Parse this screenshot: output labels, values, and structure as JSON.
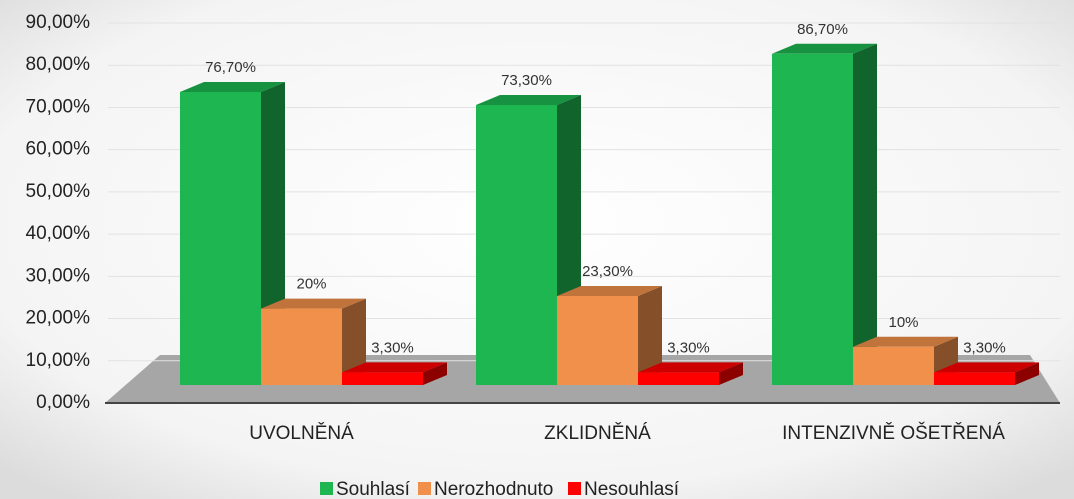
{
  "chart_data": {
    "type": "bar3d",
    "categories": [
      "UVOLNĚNÁ",
      "ZKLIDNĚNÁ",
      "INTENZIVNĚ OŠETŘENÁ"
    ],
    "series": [
      {
        "name": "Souhlasí",
        "color": "#1db650",
        "values": [
          76.7,
          73.3,
          86.7
        ],
        "value_labels": [
          "76,70%",
          "73,30%",
          "86,70%"
        ]
      },
      {
        "name": "Nerozhodnuto",
        "color": "#f0904a",
        "values": [
          20,
          23.3,
          10
        ],
        "value_labels": [
          "20%",
          "23,30%",
          "10%"
        ]
      },
      {
        "name": "Nesouhlasí",
        "color": "#ff0000",
        "values": [
          3.3,
          3.3,
          3.3
        ],
        "value_labels": [
          "3,30%",
          "3,30%",
          "3,30%"
        ]
      }
    ],
    "ylim": [
      0,
      90
    ],
    "yticks": [
      {
        "value": 0,
        "label": "0,00%"
      },
      {
        "value": 10,
        "label": "10,00%"
      },
      {
        "value": 20,
        "label": "20,00%"
      },
      {
        "value": 30,
        "label": "30,00%"
      },
      {
        "value": 40,
        "label": "40,00%"
      },
      {
        "value": 50,
        "label": "50,00%"
      },
      {
        "value": 60,
        "label": "60,00%"
      },
      {
        "value": 70,
        "label": "70,00%"
      },
      {
        "value": 80,
        "label": "80,00%"
      },
      {
        "value": 90,
        "label": "90,00%"
      }
    ],
    "grid": true,
    "legend": "bottom"
  }
}
